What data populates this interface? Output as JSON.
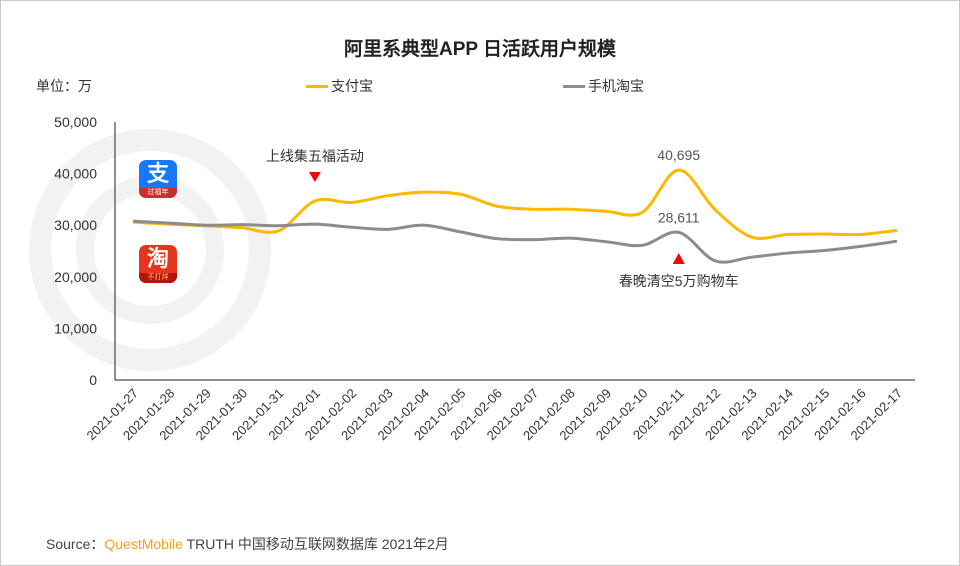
{
  "title": "阿里系典型APP 日活跃用户规模",
  "unit_label": "单位：万",
  "source": {
    "prefix": "Source：",
    "brand": "QuestMobile",
    "rest": " TRUTH 中国移动互联网数据库 2021年2月"
  },
  "watermark": "QUEST MOBILE",
  "icons": [
    {
      "name": "alipay-icon",
      "glyph": "支",
      "banner": "过福年",
      "color": "#1677ff"
    },
    {
      "name": "taobao-icon",
      "glyph": "淘",
      "banner": "不打烊",
      "color": "#e8341c"
    }
  ],
  "chart_data": {
    "type": "line",
    "title": "阿里系典型APP 日活跃用户规模",
    "ylabel": "单位：万",
    "ylim": [
      0,
      50000
    ],
    "yticks": [
      0,
      10000,
      20000,
      30000,
      40000,
      50000
    ],
    "ytick_labels": [
      "0",
      "10,000",
      "20,000",
      "30,000",
      "40,000",
      "50,000"
    ],
    "legend_position": "top",
    "categories": [
      "2021-01-27",
      "2021-01-28",
      "2021-01-29",
      "2021-01-30",
      "2021-01-31",
      "2021-02-01",
      "2021-02-02",
      "2021-02-03",
      "2021-02-04",
      "2021-02-05",
      "2021-02-06",
      "2021-02-07",
      "2021-02-08",
      "2021-02-09",
      "2021-02-10",
      "2021-02-11",
      "2021-02-12",
      "2021-02-13",
      "2021-02-14",
      "2021-02-15",
      "2021-02-16",
      "2021-02-17"
    ],
    "series": [
      {
        "name": "支付宝",
        "color": "#ffb800",
        "values": [
          30600,
          30200,
          29900,
          29500,
          28900,
          34700,
          34400,
          35700,
          36400,
          36000,
          33700,
          33100,
          33100,
          32700,
          32500,
          40695,
          33000,
          27700,
          28200,
          28300,
          28200,
          29000
        ]
      },
      {
        "name": "手机淘宝",
        "color": "#8c8c8c",
        "values": [
          30800,
          30400,
          30000,
          30100,
          29900,
          30200,
          29600,
          29200,
          30000,
          28700,
          27400,
          27200,
          27500,
          26800,
          26100,
          28611,
          23100,
          23800,
          24600,
          25100,
          25900,
          26900
        ]
      }
    ],
    "data_labels": [
      {
        "series": 0,
        "index": 15,
        "text": "40,695"
      },
      {
        "series": 1,
        "index": 15,
        "text": "28,611"
      }
    ],
    "annotations": [
      {
        "index": 5,
        "text": "上线集五福活动",
        "marker": "down-triangle",
        "position": "above"
      },
      {
        "index": 15,
        "text": "春晚清空5万购物车",
        "marker": "up-triangle",
        "position": "below"
      }
    ]
  }
}
